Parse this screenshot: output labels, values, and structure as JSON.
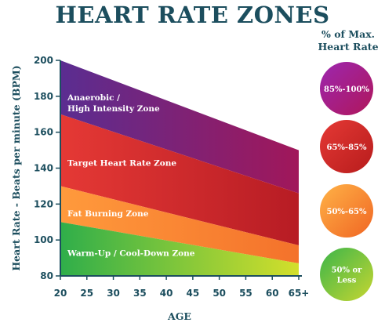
{
  "title": "HEART RATE ZONES",
  "legend": {
    "heading_line1": "% of Max.",
    "heading_line2": "Heart Rate",
    "items": [
      {
        "lines": [
          "85%-100%"
        ],
        "color_from": "#9c27b0",
        "color_to": "#b0165a"
      },
      {
        "lines": [
          "65%-85%"
        ],
        "color_from": "#e53935",
        "color_to": "#b71c1c"
      },
      {
        "lines": [
          "50%-65%"
        ],
        "color_from": "#ffb347",
        "color_to": "#f06523"
      },
      {
        "lines": [
          "50% or",
          "Less"
        ],
        "color_from": "#3bb54a",
        "color_to": "#c7d631"
      }
    ]
  },
  "chart_data": {
    "type": "area",
    "title": "HEART RATE ZONES",
    "xlabel": "AGE",
    "ylabel": "Heart Rate - Beats per minute (BPM)",
    "x_tick_labels": [
      "20",
      "25",
      "30",
      "35",
      "40",
      "45",
      "50",
      "55",
      "60",
      "65+"
    ],
    "x_ticks": [
      20,
      25,
      30,
      35,
      40,
      45,
      50,
      55,
      60,
      65
    ],
    "y_ticks": [
      80,
      100,
      120,
      140,
      160,
      180,
      200
    ],
    "xlim": [
      20,
      65
    ],
    "ylim": [
      80,
      200
    ],
    "x": [
      20,
      65
    ],
    "zones": [
      {
        "name": "Anaerobic / High Intensity Zone",
        "label_lines": [
          "Anaerobic /",
          "High Intensity Zone"
        ],
        "lower": [
          170,
          126
        ],
        "upper": [
          200,
          150
        ],
        "color_left": "#5a2d91",
        "color_right": "#a1175a"
      },
      {
        "name": "Target Heart Rate Zone",
        "label_lines": [
          "Target Heart Rate Zone"
        ],
        "lower": [
          130,
          97
        ],
        "upper": [
          170,
          126
        ],
        "color_left": "#e53935",
        "color_right": "#b71c24"
      },
      {
        "name": "Fat Burning Zone",
        "label_lines": [
          "Fat Burning Zone"
        ],
        "lower": [
          110,
          87
        ],
        "upper": [
          130,
          97
        ],
        "color_left": "#ff9a3c",
        "color_right": "#f4722b"
      },
      {
        "name": "Warm-Up / Cool-Down Zone",
        "label_lines": [
          "Warm-Up / Cool-Down Zone"
        ],
        "lower": [
          80,
          80
        ],
        "upper": [
          110,
          87
        ],
        "color_left": "#2fae4a",
        "color_right": "#d3df2b"
      }
    ]
  }
}
